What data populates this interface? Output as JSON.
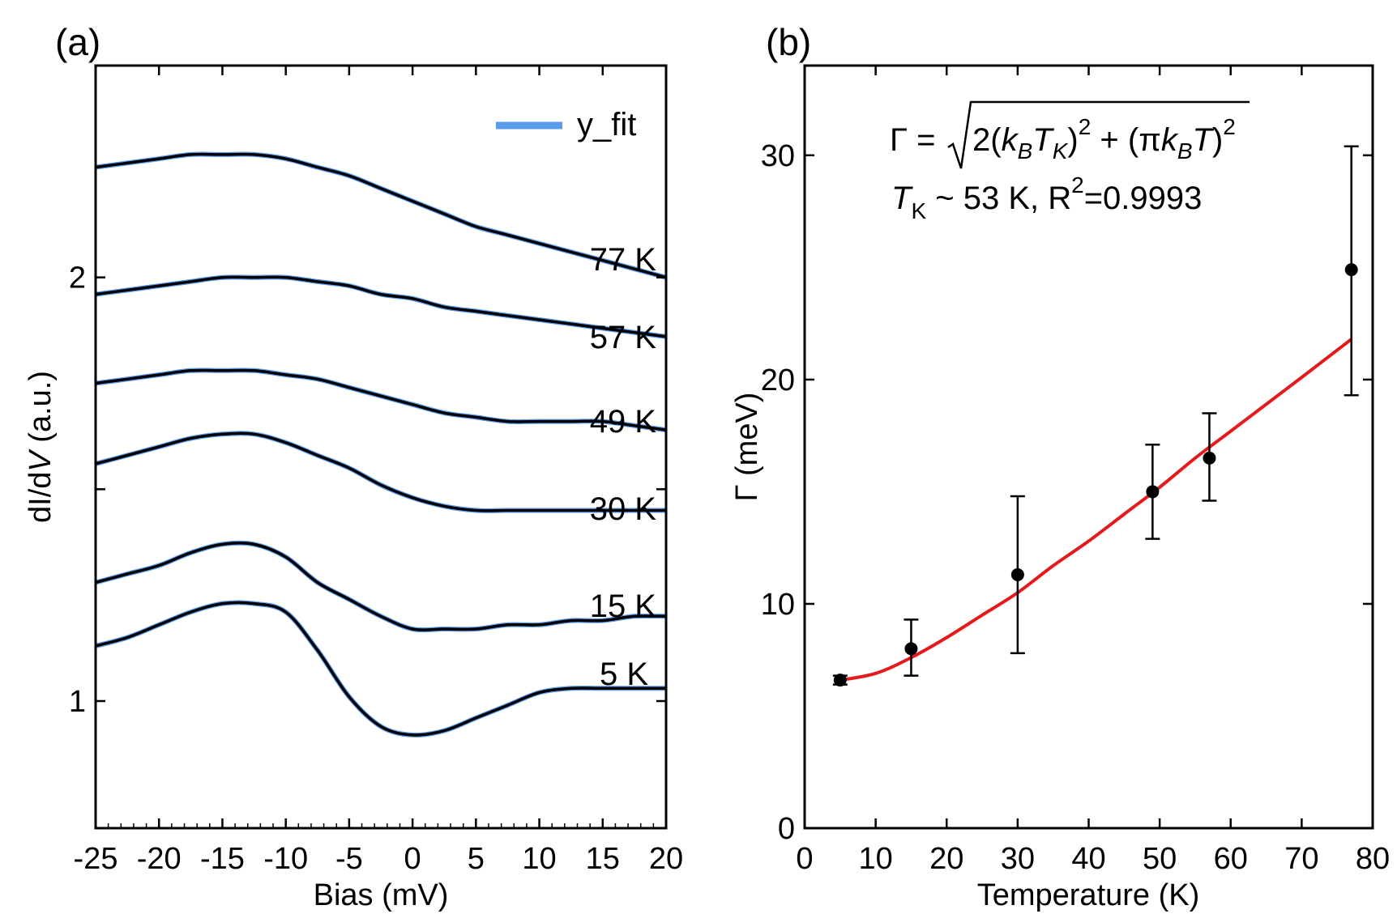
{
  "chart_data": [
    {
      "panel_label": "(a)",
      "type": "line",
      "title": "",
      "xlabel": "Bias (mV)",
      "ylabel_parts": [
        "dI/d",
        "V",
        " (a.u.)"
      ],
      "xlim": [
        -25,
        20
      ],
      "ylim": [
        0.7,
        2.5
      ],
      "xticks": [
        -25,
        -20,
        -15,
        -10,
        -5,
        0,
        5,
        10,
        15,
        20
      ],
      "xtick_labels": [
        "-25",
        "-20",
        "-15",
        "-10",
        "-5",
        "0",
        "5",
        "10",
        "15",
        "20"
      ],
      "yticks": [
        1,
        2
      ],
      "ytick_labels": [
        "1",
        "2"
      ],
      "legend": {
        "label": "y_fit",
        "color": "#5b9bec",
        "position": "top-right"
      },
      "data_color": "#000000",
      "fit_color": "#5b9bec",
      "x": [
        -25,
        -22.5,
        -20,
        -17.5,
        -15,
        -12.5,
        -10,
        -7.5,
        -5,
        -2.5,
        0,
        2.5,
        5,
        7.5,
        10,
        12.5,
        15,
        17.5,
        20
      ],
      "series": [
        {
          "name": "77 K",
          "label": "77 K",
          "values": [
            2.26,
            2.27,
            2.28,
            2.29,
            2.29,
            2.29,
            2.28,
            2.26,
            2.24,
            2.21,
            2.18,
            2.15,
            2.12,
            2.1,
            2.08,
            2.06,
            2.04,
            2.02,
            2.0
          ]
        },
        {
          "name": "57 K",
          "label": "57 K",
          "values": [
            1.96,
            1.97,
            1.98,
            1.99,
            2.0,
            2.0,
            2.0,
            1.99,
            1.98,
            1.96,
            1.95,
            1.93,
            1.92,
            1.91,
            1.9,
            1.89,
            1.88,
            1.87,
            1.86
          ]
        },
        {
          "name": "49 K",
          "label": "49 K",
          "values": [
            1.75,
            1.76,
            1.77,
            1.78,
            1.78,
            1.78,
            1.77,
            1.76,
            1.74,
            1.72,
            1.7,
            1.68,
            1.67,
            1.66,
            1.66,
            1.66,
            1.66,
            1.65,
            1.64
          ]
        },
        {
          "name": "30 K",
          "label": "30 K",
          "values": [
            1.56,
            1.58,
            1.6,
            1.62,
            1.63,
            1.63,
            1.61,
            1.58,
            1.55,
            1.51,
            1.48,
            1.46,
            1.45,
            1.45,
            1.45,
            1.45,
            1.45,
            1.45,
            1.45
          ]
        },
        {
          "name": "15 K",
          "label": "15 K",
          "values": [
            1.28,
            1.3,
            1.32,
            1.35,
            1.37,
            1.37,
            1.34,
            1.28,
            1.24,
            1.2,
            1.17,
            1.17,
            1.17,
            1.18,
            1.18,
            1.19,
            1.19,
            1.2,
            1.2
          ]
        },
        {
          "name": "5 K",
          "label": "5 K",
          "values": [
            1.13,
            1.15,
            1.18,
            1.21,
            1.23,
            1.23,
            1.21,
            1.12,
            1.01,
            0.94,
            0.92,
            0.93,
            0.96,
            0.99,
            1.02,
            1.03,
            1.03,
            1.03,
            1.03
          ]
        }
      ]
    },
    {
      "panel_label": "(b)",
      "type": "scatter",
      "title": "",
      "xlabel": "Temperature (K)",
      "ylabel": "Γ (meV)",
      "xlim": [
        0,
        80
      ],
      "ylim": [
        0,
        34
      ],
      "xticks": [
        0,
        10,
        20,
        30,
        40,
        50,
        60,
        70,
        80
      ],
      "xtick_labels": [
        "0",
        "10",
        "20",
        "30",
        "40",
        "50",
        "60",
        "70",
        "80"
      ],
      "yticks": [
        0,
        10,
        20,
        30
      ],
      "ytick_labels": [
        "0",
        "10",
        "20",
        "30"
      ],
      "points": {
        "x": [
          5,
          15,
          30,
          49,
          57,
          77
        ],
        "y": [
          6.6,
          8.0,
          11.3,
          15.0,
          16.5,
          24.9
        ],
        "err_low": [
          0.2,
          1.2,
          3.5,
          2.1,
          1.9,
          5.6
        ],
        "err_high": [
          0.2,
          1.3,
          3.5,
          2.1,
          2.0,
          5.5
        ]
      },
      "fit": {
        "x": [
          5,
          10,
          15,
          20,
          25,
          30,
          35,
          40,
          45,
          50,
          55,
          60,
          65,
          70,
          77
        ],
        "y": [
          6.6,
          6.9,
          7.6,
          8.5,
          9.5,
          10.5,
          11.7,
          12.8,
          14.0,
          15.2,
          16.5,
          17.7,
          18.9,
          20.1,
          21.8
        ],
        "color": "#e41a1c"
      },
      "annotation": {
        "gamma": "Γ = ",
        "two": "2",
        "lparen": "(",
        "rparen": ")",
        "k": "k",
        "sub_b": "B",
        "t": "T",
        "sub_k": "K",
        "sup": "2",
        "plus": " + ",
        "pi": "π",
        "tk_t": "T",
        "tk_sub": "K",
        "tk_rest": " ~ 53 K, R",
        "r_sup": "2",
        "r_val": "=0.9993"
      }
    }
  ]
}
